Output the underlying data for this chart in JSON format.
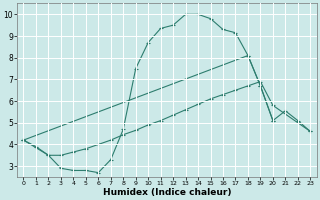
{
  "xlabel": "Humidex (Indice chaleur)",
  "xlim": [
    -0.5,
    23.5
  ],
  "ylim": [
    2.5,
    10.5
  ],
  "xticks": [
    0,
    1,
    2,
    3,
    4,
    5,
    6,
    7,
    8,
    9,
    10,
    11,
    12,
    13,
    14,
    15,
    16,
    17,
    18,
    19,
    20,
    21,
    22,
    23
  ],
  "yticks": [
    3,
    4,
    5,
    6,
    7,
    8,
    9,
    10
  ],
  "bg_color": "#cce9e8",
  "grid_color": "#ffffff",
  "line_color": "#2d7d6e",
  "line1_x": [
    0,
    1,
    2,
    3,
    4,
    5,
    6,
    7,
    8,
    9,
    10,
    11,
    12,
    13,
    14,
    15,
    16,
    17,
    18,
    19,
    20
  ],
  "line1_y": [
    4.2,
    3.9,
    3.5,
    2.9,
    2.8,
    2.8,
    2.7,
    3.3,
    4.7,
    7.5,
    8.7,
    9.35,
    9.5,
    10.0,
    10.0,
    9.8,
    9.3,
    9.15,
    8.1,
    6.7,
    5.1
  ],
  "line2_x": [
    0,
    2,
    3,
    4,
    5,
    6,
    7,
    8,
    9,
    10,
    11,
    12,
    13,
    14,
    15,
    16,
    17,
    18,
    19,
    20,
    23
  ],
  "line2_y": [
    4.2,
    3.5,
    3.5,
    3.65,
    3.8,
    4.0,
    4.2,
    4.45,
    4.65,
    4.9,
    5.1,
    5.35,
    5.6,
    5.85,
    6.1,
    6.3,
    6.5,
    6.7,
    6.9,
    5.8,
    4.6
  ],
  "line3_x": [
    0,
    18,
    19,
    20,
    21,
    22,
    23
  ],
  "line3_y": [
    4.2,
    8.1,
    6.7,
    5.1,
    5.55,
    5.1,
    4.6
  ]
}
